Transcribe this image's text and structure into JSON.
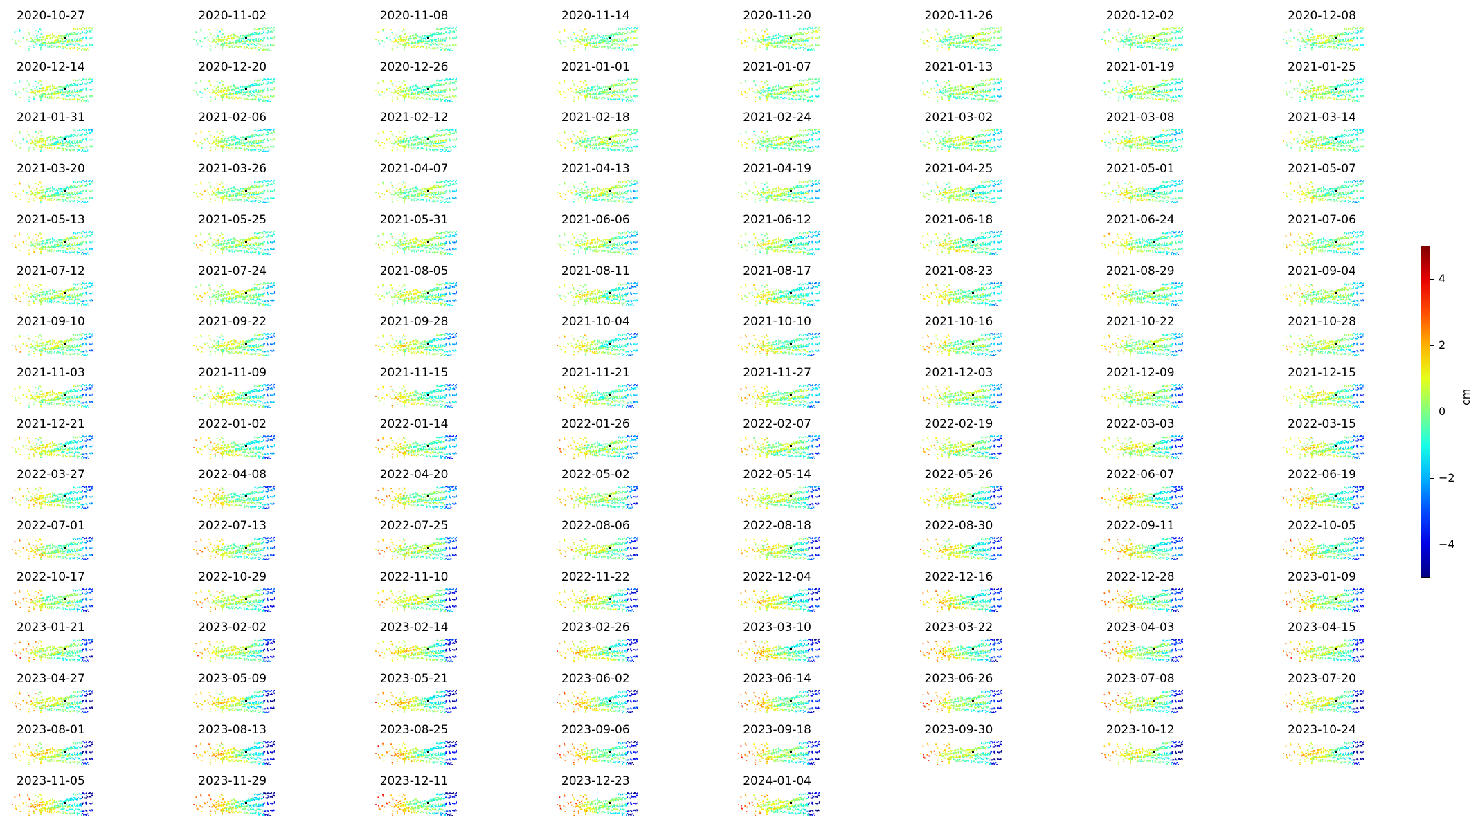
{
  "chart_data": {
    "type": "heatmap",
    "layout": "small-multiples",
    "columns": 8,
    "colormap": "jet",
    "clim": [
      -5,
      5
    ],
    "colorbar": {
      "label": "cm",
      "ticks": [
        4,
        2,
        0,
        -2,
        -4
      ],
      "tick_labels": [
        "4",
        "2",
        "0",
        "−2",
        "−4"
      ]
    },
    "dates": [
      "2020-10-27",
      "2020-11-02",
      "2020-11-08",
      "2020-11-14",
      "2020-11-20",
      "2020-11-26",
      "2020-12-02",
      "2020-12-08",
      "2020-12-14",
      "2020-12-20",
      "2020-12-26",
      "2021-01-01",
      "2021-01-07",
      "2021-01-13",
      "2021-01-19",
      "2021-01-25",
      "2021-01-31",
      "2021-02-06",
      "2021-02-12",
      "2021-02-18",
      "2021-02-24",
      "2021-03-02",
      "2021-03-08",
      "2021-03-14",
      "2021-03-20",
      "2021-03-26",
      "2021-04-07",
      "2021-04-13",
      "2021-04-19",
      "2021-04-25",
      "2021-05-01",
      "2021-05-07",
      "2021-05-13",
      "2021-05-25",
      "2021-05-31",
      "2021-06-06",
      "2021-06-12",
      "2021-06-18",
      "2021-06-24",
      "2021-07-06",
      "2021-07-12",
      "2021-07-24",
      "2021-08-05",
      "2021-08-11",
      "2021-08-17",
      "2021-08-23",
      "2021-08-29",
      "2021-09-04",
      "2021-09-10",
      "2021-09-22",
      "2021-09-28",
      "2021-10-04",
      "2021-10-10",
      "2021-10-16",
      "2021-10-22",
      "2021-10-28",
      "2021-11-03",
      "2021-11-09",
      "2021-11-15",
      "2021-11-21",
      "2021-11-27",
      "2021-12-03",
      "2021-12-09",
      "2021-12-15",
      "2021-12-21",
      "2022-01-02",
      "2022-01-14",
      "2022-01-26",
      "2022-02-07",
      "2022-02-19",
      "2022-03-03",
      "2022-03-15",
      "2022-03-27",
      "2022-04-08",
      "2022-04-20",
      "2022-05-02",
      "2022-05-14",
      "2022-05-26",
      "2022-06-07",
      "2022-06-19",
      "2022-07-01",
      "2022-07-13",
      "2022-07-25",
      "2022-08-06",
      "2022-08-18",
      "2022-08-30",
      "2022-09-11",
      "2022-10-05",
      "2022-10-17",
      "2022-10-29",
      "2022-11-10",
      "2022-11-22",
      "2022-12-04",
      "2022-12-16",
      "2022-12-28",
      "2023-01-09",
      "2023-01-21",
      "2023-02-02",
      "2023-02-14",
      "2023-02-26",
      "2023-03-10",
      "2023-03-22",
      "2023-04-03",
      "2023-04-15",
      "2023-04-27",
      "2023-05-09",
      "2023-05-21",
      "2023-06-02",
      "2023-06-14",
      "2023-06-26",
      "2023-07-08",
      "2023-07-20",
      "2023-08-01",
      "2023-08-13",
      "2023-08-25",
      "2023-09-06",
      "2023-09-18",
      "2023-09-30",
      "2023-10-12",
      "2023-10-24",
      "2023-11-05",
      "2023-11-29",
      "2023-12-11",
      "2023-12-23",
      "2024-01-04"
    ]
  }
}
